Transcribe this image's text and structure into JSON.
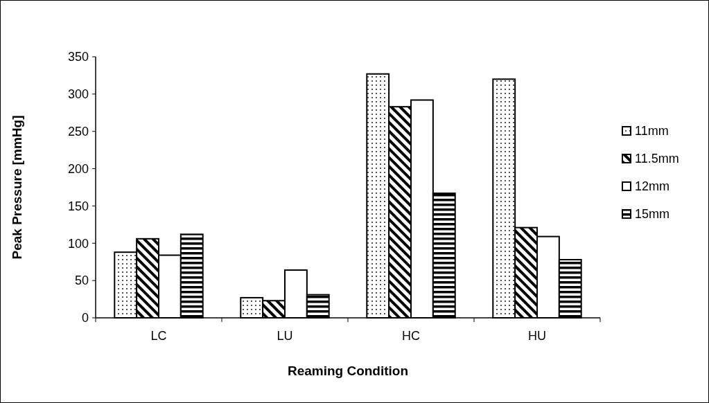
{
  "chart_data": {
    "type": "bar",
    "xlabel": "Reaming Condition",
    "ylabel": "Peak Pressure [mmHg]",
    "categories": [
      "LC",
      "LU",
      "HC",
      "HU"
    ],
    "series": [
      {
        "name": "11mm",
        "color": "#000000",
        "values": [
          88,
          27,
          327,
          320
        ]
      },
      {
        "name": "11.5mm",
        "color": "#000000",
        "values": [
          106,
          23,
          283,
          121
        ]
      },
      {
        "name": "12mm",
        "color": "#000000",
        "values": [
          84,
          64,
          292,
          109
        ]
      },
      {
        "name": "15mm",
        "color": "#000000",
        "values": [
          112,
          31,
          167,
          78
        ]
      }
    ],
    "ylim": [
      0,
      350
    ],
    "yticks": [
      0,
      50,
      100,
      150,
      200,
      250,
      300,
      350
    ],
    "grid": false,
    "legend": "right"
  }
}
